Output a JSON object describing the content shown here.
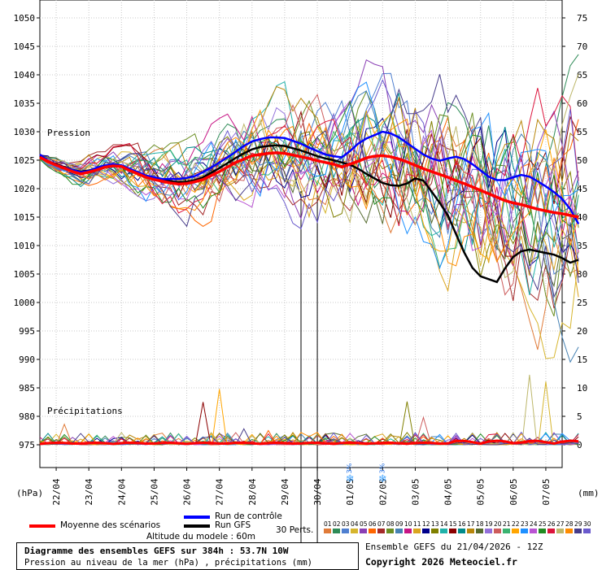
{
  "chart_data": {
    "type": "line",
    "title": "Diagramme des ensembles GEFS sur 384h : 53.7N 10W",
    "subtitle": "Pression au niveau de la mer (hPa) , précipitations (mm)",
    "left_axis": {
      "unit_label": "(hPa)",
      "ticks": [
        975,
        980,
        985,
        990,
        995,
        1000,
        1005,
        1010,
        1015,
        1020,
        1025,
        1030,
        1035,
        1040,
        1045,
        1050
      ],
      "range": [
        970,
        1050
      ]
    },
    "right_axis": {
      "unit_label": "(mm)",
      "ticks": [
        0,
        5,
        10,
        15,
        20,
        25,
        30,
        35,
        40,
        45,
        50,
        55,
        60,
        65,
        70,
        75
      ],
      "range": [
        -5,
        75
      ]
    },
    "x_axis": {
      "hours_range": [
        0,
        384
      ],
      "date_labels": [
        "22/04",
        "23/04",
        "24/04",
        "25/04",
        "26/04",
        "27/04",
        "28/04",
        "29/04",
        "30/04",
        "01/05",
        "02/05",
        "03/05",
        "04/05",
        "05/05",
        "06/05",
        "07/05"
      ],
      "first_label_hour": 12,
      "label_step_hours": 24
    },
    "panel_labels": {
      "pressure": "Pression",
      "precip": "Précipitations"
    },
    "resolution_change_hours": [
      192,
      204
    ],
    "snow_markers": [
      {
        "hour": 228,
        "label": "3%"
      },
      {
        "hour": 252,
        "label": "3%"
      }
    ],
    "pressure_series_hours_step": 6,
    "members_count": 30,
    "mean": {
      "name": "Moyenne des scénarios",
      "color": "#ff0000",
      "values": [
        1025.5,
        1024.8,
        1024.1,
        1023.6,
        1023.0,
        1022.6,
        1022.9,
        1023.3,
        1023.8,
        1024.0,
        1023.9,
        1023.2,
        1022.6,
        1022.0,
        1021.6,
        1021.3,
        1021.0,
        1020.8,
        1020.9,
        1021.2,
        1021.6,
        1022.3,
        1023.0,
        1023.8,
        1024.6,
        1025.2,
        1025.8,
        1026.0,
        1026.2,
        1026.3,
        1026.2,
        1025.9,
        1025.6,
        1025.3,
        1024.9,
        1024.6,
        1024.3,
        1023.8,
        1024.3,
        1024.8,
        1025.4,
        1025.7,
        1025.8,
        1025.6,
        1025.2,
        1024.7,
        1024.1,
        1023.5,
        1023.0,
        1022.5,
        1022.0,
        1021.4,
        1020.9,
        1020.3,
        1019.7,
        1019.1,
        1018.5,
        1017.9,
        1017.5,
        1017.2,
        1016.8,
        1016.4,
        1016.1,
        1015.8,
        1015.6,
        1015.3,
        1015.0
      ]
    },
    "control": {
      "name": "Run de contrôle",
      "color": "#0000ff",
      "values": [
        1026.0,
        1024.9,
        1024.2,
        1023.7,
        1023.3,
        1022.9,
        1023.1,
        1023.7,
        1024.1,
        1024.3,
        1024.1,
        1023.5,
        1022.9,
        1022.3,
        1022.0,
        1021.7,
        1021.7,
        1021.7,
        1021.9,
        1022.2,
        1022.9,
        1023.7,
        1024.6,
        1025.5,
        1026.5,
        1027.5,
        1028.3,
        1028.7,
        1029.0,
        1029.0,
        1028.9,
        1028.4,
        1027.9,
        1027.2,
        1026.6,
        1026.0,
        1025.7,
        1025.5,
        1026.6,
        1027.9,
        1028.8,
        1029.4,
        1030.0,
        1029.7,
        1029.0,
        1028.0,
        1027.0,
        1026.0,
        1025.3,
        1024.9,
        1025.3,
        1025.6,
        1025.2,
        1024.3,
        1023.2,
        1022.1,
        1021.5,
        1021.5,
        1022.0,
        1022.4,
        1022.1,
        1021.3,
        1020.4,
        1019.4,
        1018.2,
        1016.4,
        1013.8
      ]
    },
    "gfs": {
      "name": "Run GFS",
      "color": "#000000",
      "values": [
        1025.7,
        1024.8,
        1024.3,
        1023.8,
        1023.3,
        1023.0,
        1023.2,
        1023.6,
        1024.0,
        1024.2,
        1024.0,
        1023.3,
        1022.8,
        1022.2,
        1021.9,
        1021.5,
        1021.3,
        1021.1,
        1021.2,
        1021.5,
        1022.0,
        1022.8,
        1023.6,
        1024.5,
        1025.4,
        1026.2,
        1026.9,
        1027.3,
        1027.5,
        1027.6,
        1027.5,
        1027.1,
        1026.7,
        1026.2,
        1025.7,
        1025.3,
        1025.0,
        1024.6,
        1024.2,
        1023.5,
        1022.6,
        1021.8,
        1021.0,
        1020.6,
        1020.5,
        1020.9,
        1021.8,
        1021.4,
        1019.5,
        1017.5,
        1015.3,
        1012.0,
        1008.8,
        1006.1,
        1004.6,
        1004.1,
        1003.6,
        1006.0,
        1008.0,
        1009.0,
        1009.3,
        1009.0,
        1008.7,
        1008.4,
        1007.8,
        1007.0,
        1007.5
      ]
    },
    "members_seed": 20260421,
    "precip_series": {
      "mean_color": "#ff0000",
      "member_peaks": [
        {
          "hour": 18,
          "mm": 3.6
        },
        {
          "hour": 78,
          "mm": 1.7
        },
        {
          "hour": 120,
          "mm": 7.5
        },
        {
          "hour": 132,
          "mm": 9.8
        },
        {
          "hour": 150,
          "mm": 2.8
        },
        {
          "hour": 168,
          "mm": 2.5
        },
        {
          "hour": 270,
          "mm": 7.6
        },
        {
          "hour": 282,
          "mm": 4.8
        },
        {
          "hour": 360,
          "mm": 12.3
        },
        {
          "hour": 372,
          "mm": 11.1
        }
      ]
    },
    "legend": [
      {
        "label": "Moyenne des scénarios",
        "color": "#ff0000"
      },
      {
        "label": "Run de contrôle",
        "color": "#0000ff"
      },
      {
        "label": "Run GFS",
        "color": "#000000"
      }
    ]
  },
  "footer": {
    "altitude": "Altitude du modele : 60m",
    "perts": "30 Perts.",
    "run_info": "Ensemble GEFS du 21/04/2026 - 12Z",
    "copyright": "Copyright 2026 Meteociel.fr"
  },
  "member_colors": [
    "#e07b39",
    "#2e8b57",
    "#4f7fd0",
    "#d6b52e",
    "#8a3fb5",
    "#ff6600",
    "#a52a2a",
    "#6b8e23",
    "#4682b4",
    "#c71585",
    "#daa520",
    "#00008b",
    "#808000",
    "#20b2aa",
    "#8b0000",
    "#008b8b",
    "#b8860b",
    "#556b2f",
    "#9370db",
    "#cd5c5c",
    "#3cb371",
    "#ffa500",
    "#1e90ff",
    "#ba55d3",
    "#228b22",
    "#dc143c",
    "#bdb76b",
    "#ff8c00",
    "#483d8b",
    "#6a5acd"
  ],
  "member_numbers": [
    "01",
    "02",
    "03",
    "04",
    "05",
    "06",
    "07",
    "08",
    "09",
    "10",
    "11",
    "12",
    "13",
    "14",
    "15",
    "16",
    "17",
    "18",
    "19",
    "20",
    "21",
    "22",
    "23",
    "24",
    "25",
    "26",
    "27",
    "28",
    "29",
    "30"
  ]
}
